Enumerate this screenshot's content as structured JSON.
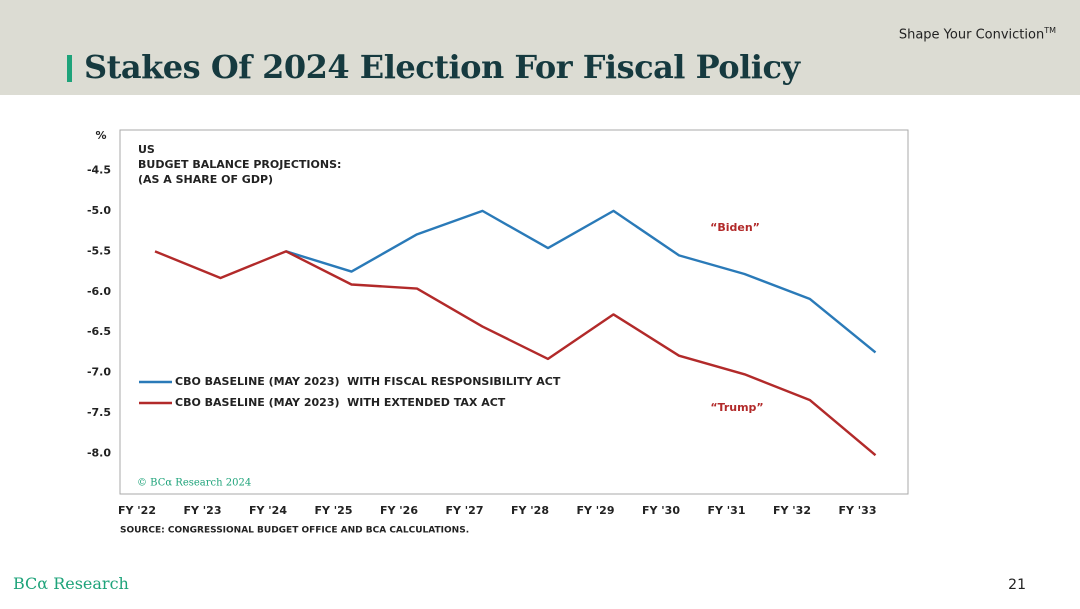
{
  "header": {
    "title": "Stakes Of 2024 Election For Fiscal Policy",
    "tagline": "Shape Your Conviction",
    "tagline_mark": "TM"
  },
  "footer": {
    "logo": "BCα Research",
    "page": "21"
  },
  "chart_data": {
    "type": "line",
    "title": "US",
    "subtitle": "BUDGET BALANCE PROJECTIONS:",
    "subtitle2": "(AS A SHARE OF GDP)",
    "y_unit": "%",
    "annotations": [
      "“Biden”",
      "“Trump”"
    ],
    "copyright": "© BCα Research 2024",
    "source": "SOURCE: CONGRESSIONAL BUDGET OFFICE AND BCA CALCULATIONS.",
    "categories": [
      "FY '22",
      "FY '23",
      "FY '24",
      "FY '25",
      "FY '26",
      "FY '27",
      "FY '28",
      "FY '29",
      "FY '30",
      "FY '31",
      "FY '32",
      "FY '33"
    ],
    "series": [
      {
        "name": "CBO BASELINE (MAY 2023)  WITH FISCAL RESPONSIBILITY ACT",
        "color": "#2a7ab8",
        "values": [
          null,
          null,
          -5.5,
          -5.75,
          -5.29,
          -5.0,
          -5.46,
          -5.0,
          -5.55,
          -5.78,
          -6.09,
          -6.75
        ]
      },
      {
        "name": "CBO BASELINE (MAY 2023)  WITH EXTENDED TAX ACT",
        "color": "#b22a2a",
        "values": [
          -5.5,
          -5.83,
          -5.5,
          -5.91,
          -5.96,
          -6.43,
          -6.83,
          -6.28,
          -6.79,
          -7.02,
          -7.34,
          -8.02
        ]
      }
    ],
    "ylim": [
      -8.5,
      -4.0
    ],
    "yticks": [
      -4.5,
      {
        "value": -5,
        "label": "-5.0"
      },
      -5.5,
      {
        "value": -6,
        "label": "-6.0"
      },
      -6.5,
      {
        "value": -7,
        "label": "-7.0"
      },
      -7.5,
      {
        "value": -8,
        "label": "-8.0"
      }
    ],
    "grid": false,
    "legend": "lower-left"
  }
}
